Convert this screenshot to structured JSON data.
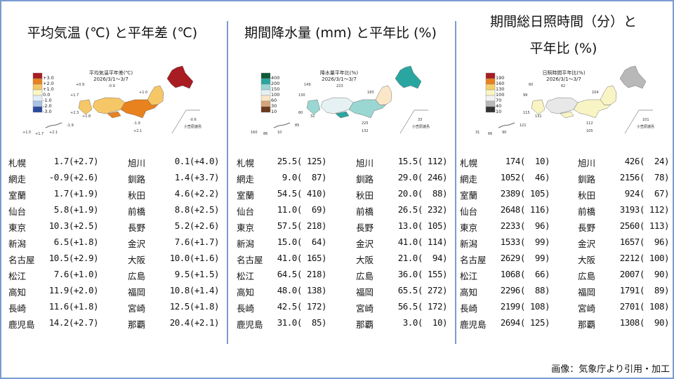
{
  "credit": "画像：気象庁より引用・加工",
  "panels": [
    {
      "title_lines": [
        "平均気温 (℃) と平年差 (℃)"
      ],
      "map": {
        "title": "平均気温平年差(℃)",
        "period": "2026/3/1～3/7",
        "legend": [
          {
            "label": "+3.0",
            "color": "#a81c22"
          },
          {
            "label": "+2.0",
            "color": "#e8821e"
          },
          {
            "label": "+1.0",
            "color": "#f6c766"
          },
          {
            "label": "0.0",
            "color": "#fbf6c8"
          },
          {
            "label": "-1.0",
            "color": "#e4eef8"
          },
          {
            "label": "-2.0",
            "color": "#a9c3e6"
          },
          {
            "label": "-3.0",
            "color": "#2a4a9c"
          }
        ],
        "region_colors": {
          "hokkaido": "#a81c22",
          "tohoku": "#f6c766",
          "kanto": "#e8821e",
          "west": "#f6c766",
          "shikoku": "#e8821e",
          "kyushu": "#f6c766"
        },
        "station_labels": [
          "+0.9",
          "-0.9",
          "+1.7",
          "+1.0",
          "+2.3",
          "+1.8",
          "-1.9",
          "+2.1",
          "-0.6",
          "+1.5",
          "+1.7",
          "+2.1",
          "-1.9"
        ],
        "islands_label": "小笠原諸島"
      },
      "rows": [
        [
          {
            "name": "札幌",
            "value": "1.7(+2.7)"
          },
          {
            "name": "旭川",
            "value": "0.1(+4.0)"
          }
        ],
        [
          {
            "name": "網走",
            "value": "-0.9(+2.6)"
          },
          {
            "name": "釧路",
            "value": "1.4(+3.7)"
          }
        ],
        [
          {
            "name": "室蘭",
            "value": "1.7(+1.9)"
          },
          {
            "name": "秋田",
            "value": "4.6(+2.2)"
          }
        ],
        [
          {
            "name": "仙台",
            "value": "5.8(+1.9)"
          },
          {
            "name": "前橋",
            "value": "8.8(+2.5)"
          }
        ],
        [
          {
            "name": "東京",
            "value": "10.3(+2.5)"
          },
          {
            "name": "長野",
            "value": "5.2(+2.6)"
          }
        ],
        [
          {
            "name": "新潟",
            "value": "6.5(+1.8)"
          },
          {
            "name": "金沢",
            "value": "7.6(+1.7)"
          }
        ],
        [
          {
            "name": "名古屋",
            "value": "10.5(+2.9)"
          },
          {
            "name": "大阪",
            "value": "10.0(+1.6)"
          }
        ],
        [
          {
            "name": "松江",
            "value": "7.6(+1.0)"
          },
          {
            "name": "広島",
            "value": "9.5(+1.5)"
          }
        ],
        [
          {
            "name": "高知",
            "value": "11.9(+2.0)"
          },
          {
            "name": "福岡",
            "value": "10.8(+1.4)"
          }
        ],
        [
          {
            "name": "長崎",
            "value": "11.6(+1.8)"
          },
          {
            "name": "宮崎",
            "value": "12.5(+1.8)"
          }
        ],
        [
          {
            "name": "鹿児島",
            "value": "14.2(+2.7)"
          },
          {
            "name": "那覇",
            "value": "20.4(+2.1)"
          }
        ]
      ]
    },
    {
      "title_lines": [
        "期間降水量 (mm) と平年比 (%)"
      ],
      "map": {
        "title": "降水量平年比(%)",
        "period": "2026/3/1～3/7",
        "legend": [
          {
            "label": "400",
            "color": "#0d5a3a"
          },
          {
            "label": "200",
            "color": "#2aa6a0"
          },
          {
            "label": "150",
            "color": "#9ad6d2"
          },
          {
            "label": "100",
            "color": "#e6f1f4"
          },
          {
            "label": "60",
            "color": "#fbe6c8"
          },
          {
            "label": "30",
            "color": "#d9a47a"
          },
          {
            "label": "10",
            "color": "#6b3a1c"
          }
        ],
        "region_colors": {
          "hokkaido": "#2aa6a0",
          "tohoku": "#fbe6c8",
          "kanto": "#9ad6d2",
          "west": "#e6f1f4",
          "shikoku": "#2aa6a0",
          "kyushu": "#9ad6d2"
        },
        "station_labels": [
          "149",
          "223",
          "130",
          "183",
          "60",
          "32",
          "225",
          "132",
          "33",
          "160",
          "86",
          "10",
          "85"
        ],
        "islands_label": "小笠原諸島"
      },
      "rows": [
        [
          {
            "name": "札幌",
            "value": "25.5( 125)"
          },
          {
            "name": "旭川",
            "value": "15.5( 112)"
          }
        ],
        [
          {
            "name": "網走",
            "value": "9.0(  87)"
          },
          {
            "name": "釧路",
            "value": "29.0( 246)"
          }
        ],
        [
          {
            "name": "室蘭",
            "value": "54.5( 410)"
          },
          {
            "name": "秋田",
            "value": "20.0(  88)"
          }
        ],
        [
          {
            "name": "仙台",
            "value": "11.0(  69)"
          },
          {
            "name": "前橋",
            "value": "26.5( 232)"
          }
        ],
        [
          {
            "name": "東京",
            "value": "57.5( 218)"
          },
          {
            "name": "長野",
            "value": "13.0( 105)"
          }
        ],
        [
          {
            "name": "新潟",
            "value": "15.0(  64)"
          },
          {
            "name": "金沢",
            "value": "41.0( 114)"
          }
        ],
        [
          {
            "name": "名古屋",
            "value": "41.0( 165)"
          },
          {
            "name": "大阪",
            "value": "21.0(  94)"
          }
        ],
        [
          {
            "name": "松江",
            "value": "64.5( 218)"
          },
          {
            "name": "広島",
            "value": "36.0( 155)"
          }
        ],
        [
          {
            "name": "高知",
            "value": "48.0( 138)"
          },
          {
            "name": "福岡",
            "value": "65.5( 272)"
          }
        ],
        [
          {
            "name": "長崎",
            "value": "42.5( 172)"
          },
          {
            "name": "宮崎",
            "value": "56.5( 172)"
          }
        ],
        [
          {
            "name": "鹿児島",
            "value": "31.0(  85)"
          },
          {
            "name": "那覇",
            "value": "3.0(  10)"
          }
        ]
      ]
    },
    {
      "title_lines": [
        "期間総日照時間（分）と",
        "平年比 (%)"
      ],
      "map": {
        "title": "日照時間平年比(%)",
        "period": "2026/3/1～3/7",
        "legend": [
          {
            "label": "190",
            "color": "#a81c22"
          },
          {
            "label": "160",
            "color": "#e8821e"
          },
          {
            "label": "130",
            "color": "#f6cf6a"
          },
          {
            "label": "100",
            "color": "#f8f4c4"
          },
          {
            "label": "70",
            "color": "#f2f2f2"
          },
          {
            "label": "40",
            "color": "#b8b8b8"
          },
          {
            "label": "10",
            "color": "#333333"
          }
        ],
        "region_colors": {
          "hokkaido": "#b8b8b8",
          "tohoku": "#f8f4c4",
          "kanto": "#f8f4c4",
          "west": "#e8e8e8",
          "shikoku": "#f8f4c4",
          "kyushu": "#f8f4c4"
        },
        "station_labels": [
          "60",
          "62",
          "99",
          "104",
          "115",
          "131",
          "112",
          "105",
          "101",
          "31",
          "66",
          "90",
          "121"
        ],
        "islands_label": "小笠原諸島"
      },
      "rows": [
        [
          {
            "name": "札幌",
            "value": "174(  10)"
          },
          {
            "name": "旭川",
            "value": "426(  24)"
          }
        ],
        [
          {
            "name": "網走",
            "value": "1052(  46)"
          },
          {
            "name": "釧路",
            "value": "2156(  78)"
          }
        ],
        [
          {
            "name": "室蘭",
            "value": "2389( 105)"
          },
          {
            "name": "秋田",
            "value": "924(  67)"
          }
        ],
        [
          {
            "name": "仙台",
            "value": "2648( 116)"
          },
          {
            "name": "前橋",
            "value": "3193( 112)"
          }
        ],
        [
          {
            "name": "東京",
            "value": "2233(  96)"
          },
          {
            "name": "長野",
            "value": "2560( 113)"
          }
        ],
        [
          {
            "name": "新潟",
            "value": "1533(  99)"
          },
          {
            "name": "金沢",
            "value": "1657(  96)"
          }
        ],
        [
          {
            "name": "名古屋",
            "value": "2629(  99)"
          },
          {
            "name": "大阪",
            "value": "2212( 100)"
          }
        ],
        [
          {
            "name": "松江",
            "value": "1068(  66)"
          },
          {
            "name": "広島",
            "value": "2007(  90)"
          }
        ],
        [
          {
            "name": "高知",
            "value": "2296(  88)"
          },
          {
            "name": "福岡",
            "value": "1791(  89)"
          }
        ],
        [
          {
            "name": "長崎",
            "value": "2199( 108)"
          },
          {
            "name": "宮崎",
            "value": "2701( 108)"
          }
        ],
        [
          {
            "name": "鹿児島",
            "value": "2694( 125)"
          },
          {
            "name": "那覇",
            "value": "1308(  90)"
          }
        ]
      ]
    }
  ]
}
